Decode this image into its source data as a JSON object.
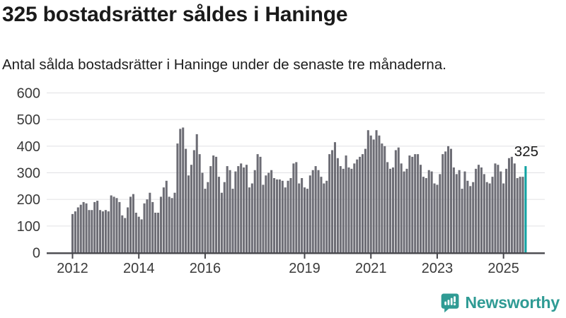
{
  "header": {
    "title": "325 bostadsrätter såldes i Haninge",
    "subtitle": "Antal sålda bostadsrätter i Haninge under de senaste tre månaderna."
  },
  "chart_data": {
    "type": "bar",
    "title": "325 bostadsrätter såldes i Haninge",
    "subtitle": "Antal sålda bostadsrätter i Haninge under de senaste tre månaderna.",
    "xlabel": "",
    "ylabel": "",
    "x_start": "2012-01",
    "x_end": "2025-09",
    "frequency": "monthly",
    "ylim": [
      0,
      600
    ],
    "y_ticks": [
      0,
      100,
      200,
      300,
      400,
      500,
      600
    ],
    "grid": true,
    "x_tick_labels": [
      "2012",
      "2014",
      "2016",
      "2019",
      "2021",
      "2023",
      "2025"
    ],
    "x_tick_year_offsets": [
      0,
      2,
      4,
      7,
      9,
      11,
      13
    ],
    "values": [
      145,
      155,
      170,
      180,
      190,
      185,
      160,
      160,
      190,
      195,
      160,
      155,
      160,
      155,
      215,
      210,
      205,
      190,
      140,
      130,
      170,
      210,
      220,
      150,
      135,
      125,
      185,
      200,
      225,
      190,
      150,
      150,
      210,
      245,
      270,
      210,
      205,
      225,
      410,
      465,
      470,
      390,
      290,
      330,
      385,
      445,
      370,
      300,
      240,
      265,
      325,
      365,
      360,
      285,
      225,
      265,
      325,
      310,
      240,
      305,
      325,
      335,
      320,
      330,
      245,
      260,
      310,
      370,
      360,
      255,
      290,
      300,
      310,
      280,
      275,
      275,
      270,
      245,
      270,
      280,
      335,
      340,
      260,
      280,
      245,
      240,
      290,
      310,
      325,
      310,
      285,
      260,
      270,
      370,
      385,
      415,
      355,
      325,
      315,
      365,
      320,
      315,
      335,
      350,
      360,
      370,
      390,
      460,
      440,
      425,
      460,
      440,
      410,
      400,
      340,
      315,
      320,
      385,
      395,
      335,
      305,
      315,
      365,
      360,
      370,
      370,
      330,
      285,
      280,
      310,
      305,
      260,
      255,
      295,
      370,
      380,
      400,
      390,
      320,
      295,
      310,
      240,
      305,
      270,
      250,
      265,
      315,
      330,
      320,
      295,
      265,
      260,
      285,
      335,
      330,
      305,
      260,
      315,
      355,
      360,
      335,
      280,
      285,
      285,
      325
    ],
    "highlight_last": true,
    "highlight_value_label": "325",
    "bar_color": "#6d6d75",
    "highlight_color": "#10a2a2",
    "grid_color": "#e1e1e4",
    "axis_color": "#47474c",
    "axis_label_color": "#3a3a3a",
    "annotation_color": "#1a1a1a",
    "legend": "none"
  },
  "footer": {
    "brand": "Newsworthy",
    "brand_color": "#2f9b94",
    "brand_icon": "bar-chart-speech-bubble-icon"
  }
}
